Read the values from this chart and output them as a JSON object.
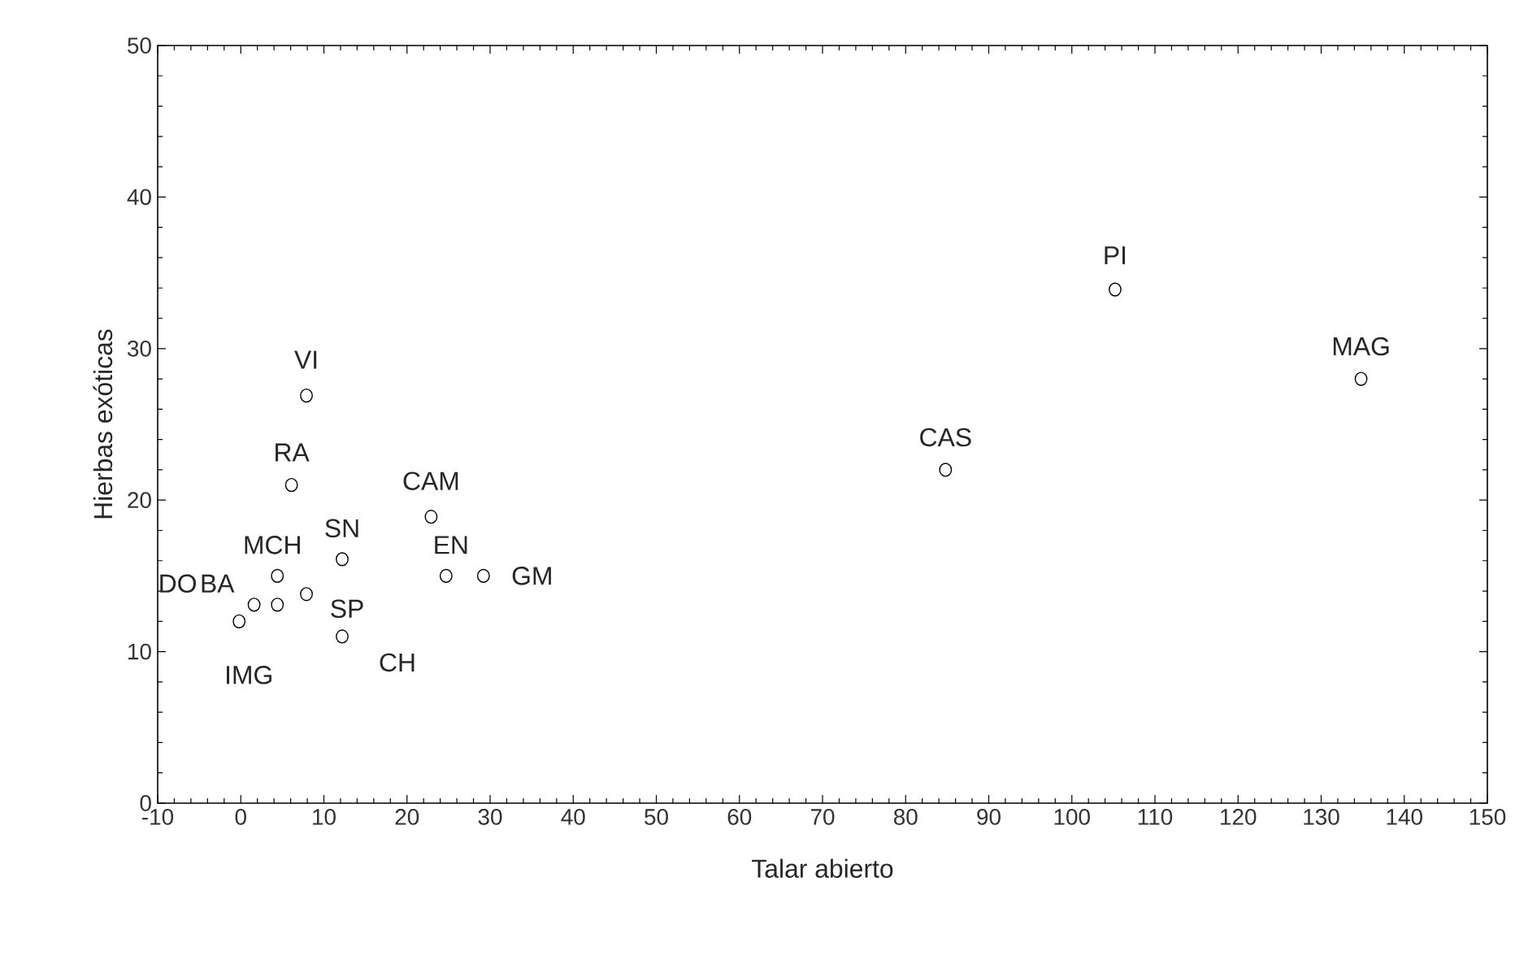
{
  "chart_data": {
    "type": "scatter",
    "xlabel": "Talar abierto",
    "ylabel": "Hierbas exóticas",
    "x": [
      7.9,
      6.1,
      22.9,
      12.2,
      4.4,
      24.7,
      29.2,
      1.6,
      -0.2,
      7.9,
      4.4,
      12.2,
      84.8,
      105.2,
      134.8
    ],
    "series": [
      {
        "color": "#000000",
        "values": [
          26.9,
          21.0,
          18.9,
          16.1,
          15.0,
          15.0,
          15.0,
          13.1,
          12.0,
          13.8,
          13.1,
          11.0,
          22.0,
          33.9,
          28.0
        ]
      }
    ],
    "marker": "circle",
    "xlim": [
      -10,
      150
    ],
    "xticks": [
      -10,
      0,
      10,
      20,
      30,
      40,
      50,
      60,
      70,
      80,
      90,
      100,
      110,
      120,
      130,
      140,
      150
    ],
    "ylim": [
      0,
      50
    ],
    "yticks": [
      0,
      10,
      20,
      30,
      40,
      50
    ],
    "annotations": [
      {
        "text": "VI",
        "x": 7.9,
        "y": 26.9
      },
      {
        "text": "RA",
        "x": 6.1,
        "y": 21.0
      },
      {
        "text": "CAM",
        "x": 22.9,
        "y": 18.9
      },
      {
        "text": "SN",
        "x": 12.2,
        "y": 16.1
      },
      {
        "text": "MCH",
        "x": 4.4,
        "y": 15.0
      },
      {
        "text": "EN",
        "x": 24.7,
        "y": 15.0
      },
      {
        "text": "GM",
        "x": 29.2,
        "y": 15.0
      },
      {
        "text": "BA",
        "x": 4.4,
        "y": 13.1
      },
      {
        "text": "DO",
        "x": 1.6,
        "y": 13.1
      },
      {
        "text": "SP",
        "x": 7.9,
        "y": 13.8
      },
      {
        "text": "IMG",
        "x": -0.2,
        "y": 12.0
      },
      {
        "text": "CH",
        "x": 12.2,
        "y": 11.0
      },
      {
        "text": "CAS",
        "x": 84.8,
        "y": 22.0
      },
      {
        "text": "PI",
        "x": 105.2,
        "y": 33.9
      },
      {
        "text": "MAG",
        "x": 134.8,
        "y": 28.0
      }
    ]
  }
}
